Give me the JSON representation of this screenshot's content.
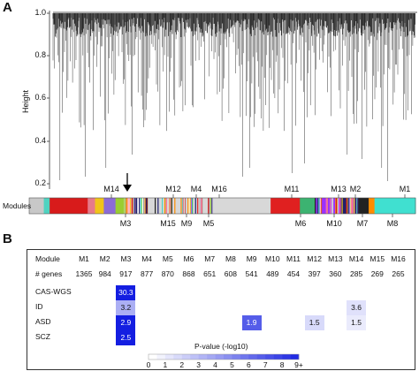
{
  "panel_a": {
    "letter": "A",
    "y_label": "Height",
    "y_ticks": [
      "1.0",
      "0.8",
      "0.6",
      "0.4",
      "0.2"
    ],
    "modules_row_label": "Modules",
    "module_labels_top": [
      "M14",
      "M12",
      "M4",
      "M16",
      "M11",
      "M13",
      "M2",
      "M1"
    ],
    "module_labels_bottom": [
      "M3",
      "M15",
      "M9",
      "M5",
      "M6",
      "M10",
      "M7",
      "M8"
    ],
    "arrow_icon": "down-arrow-icon",
    "module_colors": [
      "#c8c8c8",
      "#4fd3c0",
      "#d81b1b",
      "#e67a8a",
      "#f0c419",
      "#8c6bd6",
      "#9acd32",
      "#ffb6c1",
      "#4a3b9a",
      "#ffffff",
      "#d8d8d8",
      "#e02020",
      "#3cb371",
      "#9b30ff",
      "#1f1f6e",
      "#ff6fa8",
      "#222222",
      "#ff8c00",
      "#40e0d0"
    ]
  },
  "panel_b": {
    "letter": "B",
    "header_label": "Module",
    "modules": [
      "M1",
      "M2",
      "M3",
      "M4",
      "M5",
      "M6",
      "M7",
      "M8",
      "M9",
      "M10",
      "M11",
      "M12",
      "M13",
      "M14",
      "M15",
      "M16"
    ],
    "genes_label": "# genes",
    "genes": [
      "1365",
      "984",
      "917",
      "877",
      "870",
      "868",
      "651",
      "608",
      "541",
      "489",
      "454",
      "397",
      "360",
      "285",
      "269",
      "265"
    ],
    "rows": [
      {
        "label": "CAS-WGS",
        "cells": [
          {
            "module": "M3",
            "value": "30.3",
            "level": 9
          }
        ]
      },
      {
        "label": "ID",
        "cells": [
          {
            "module": "M3",
            "value": "3.2",
            "level": 3.2
          },
          {
            "module": "M14",
            "value": "3.6",
            "level": 1.2
          }
        ]
      },
      {
        "label": "ASD",
        "cells": [
          {
            "module": "M3",
            "value": "2.9",
            "level": 9
          },
          {
            "module": "M9",
            "value": "1.9",
            "level": 6.5
          },
          {
            "module": "M12",
            "value": "1.5",
            "level": 1.5
          },
          {
            "module": "M14",
            "value": "1.5",
            "level": 0.8
          }
        ]
      },
      {
        "label": "SCZ",
        "cells": [
          {
            "module": "M3",
            "value": "2.5",
            "level": 9
          }
        ]
      }
    ],
    "legend_title": "P-value (-log10)",
    "legend_ticks": [
      "0",
      "1",
      "2",
      "3",
      "4",
      "5",
      "6",
      "7",
      "8",
      "9+"
    ]
  }
}
